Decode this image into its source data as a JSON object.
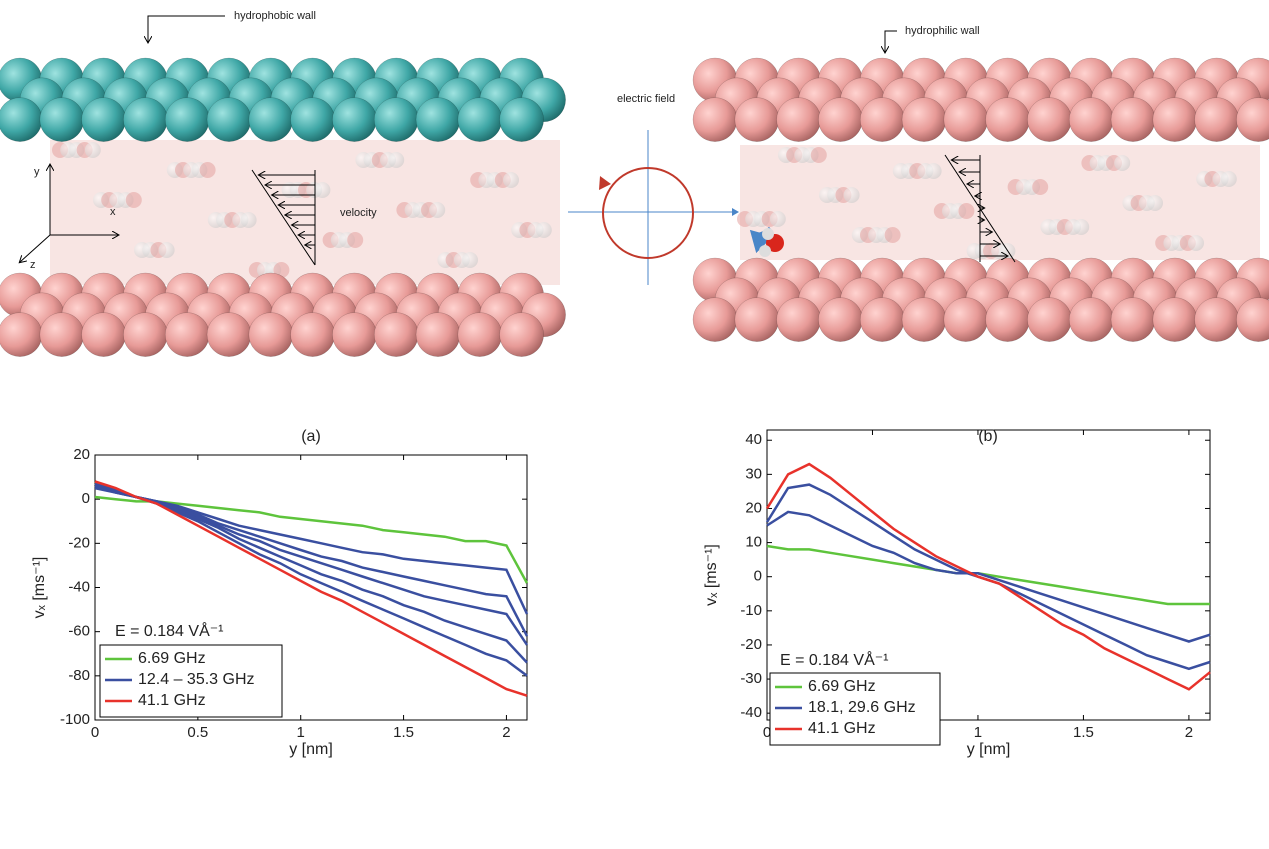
{
  "illustration": {
    "left_panel": {
      "wall_label": "hydrophobic wall",
      "flow_label": "velocity",
      "axes": [
        "y",
        "x",
        "z"
      ]
    },
    "center": {
      "field_label": "electric field"
    },
    "right_panel": {
      "wall_label": "hydrophilic wall"
    }
  },
  "chart_data": [
    {
      "type": "line",
      "title": "(a)",
      "x_label": "y [nm]",
      "y_label": "vₓ [ms⁻¹]",
      "annotation": "E = 0.184 VÅ⁻¹",
      "x": [
        0,
        0.1,
        0.2,
        0.3,
        0.4,
        0.5,
        0.6,
        0.7,
        0.8,
        0.9,
        1.0,
        1.1,
        1.2,
        1.3,
        1.4,
        1.5,
        1.6,
        1.7,
        1.8,
        1.9,
        2.0,
        2.1
      ],
      "xlim": [
        0,
        2.1
      ],
      "xticks": [
        0,
        0.5,
        1,
        1.5,
        2
      ],
      "ylim": [
        -100,
        20
      ],
      "yticks": [
        -100,
        -80,
        -60,
        -40,
        -20,
        0,
        20
      ],
      "series": [
        {
          "name": "6.69 GHz",
          "color": "#5ec43c",
          "values": [
            [
              1,
              0,
              -1,
              -1,
              -2,
              -3,
              -4,
              -5,
              -6,
              -8,
              -9,
              -10,
              -11,
              -12,
              -14,
              -15,
              -16,
              -17,
              -19,
              -19,
              -21,
              -38
            ]
          ]
        },
        {
          "name": "12.4 – 35.3 GHz",
          "color": "#3a4fa0",
          "values": [
            [
              5,
              3,
              1,
              -1,
              -3,
              -6,
              -9,
              -12,
              -14,
              -16,
              -18,
              -20,
              -22,
              -24,
              -25,
              -27,
              -28,
              -29,
              -30,
              -31,
              -32,
              -52
            ],
            [
              6,
              3,
              1,
              -1,
              -4,
              -7,
              -11,
              -14,
              -17,
              -20,
              -23,
              -26,
              -28,
              -31,
              -33,
              -35,
              -37,
              -39,
              -41,
              -43,
              -44,
              -62
            ],
            [
              6,
              4,
              1,
              -1,
              -4,
              -8,
              -12,
              -16,
              -19,
              -23,
              -26,
              -29,
              -32,
              -35,
              -38,
              -41,
              -44,
              -46,
              -48,
              -50,
              -52,
              -66
            ],
            [
              7,
              4,
              1,
              -1,
              -5,
              -9,
              -13,
              -18,
              -22,
              -26,
              -30,
              -34,
              -37,
              -41,
              -44,
              -48,
              -51,
              -55,
              -58,
              -61,
              -64,
              -74
            ],
            [
              7,
              4,
              1,
              -2,
              -6,
              -10,
              -15,
              -20,
              -25,
              -29,
              -34,
              -38,
              -42,
              -46,
              -50,
              -54,
              -58,
              -62,
              -66,
              -70,
              -73,
              -80
            ]
          ]
        },
        {
          "name": "41.1 GHz",
          "color": "#e8322b",
          "values": [
            [
              8,
              5,
              1,
              -2,
              -7,
              -12,
              -17,
              -22,
              -27,
              -32,
              -37,
              -42,
              -46,
              -51,
              -56,
              -61,
              -66,
              -71,
              -76,
              -81,
              -86,
              -89
            ]
          ]
        }
      ]
    },
    {
      "type": "line",
      "title": "(b)",
      "x_label": "y [nm]",
      "y_label": "vₓ [ms⁻¹]",
      "annotation": "E = 0.184 VÅ⁻¹",
      "x": [
        0,
        0.1,
        0.2,
        0.3,
        0.4,
        0.5,
        0.6,
        0.7,
        0.8,
        0.9,
        1.0,
        1.1,
        1.2,
        1.3,
        1.4,
        1.5,
        1.6,
        1.7,
        1.8,
        1.9,
        2.0,
        2.1
      ],
      "xlim": [
        0,
        2.1
      ],
      "xticks": [
        0,
        0.5,
        1,
        1.5,
        2
      ],
      "ylim": [
        -42,
        43
      ],
      "yticks": [
        -40,
        -30,
        -20,
        -10,
        0,
        10,
        20,
        30,
        40
      ],
      "series": [
        {
          "name": "6.69 GHz",
          "color": "#5ec43c",
          "values": [
            [
              9,
              8,
              8,
              7,
              6,
              5,
              4,
              3,
              2,
              1,
              1,
              0,
              -1,
              -2,
              -3,
              -4,
              -5,
              -6,
              -7,
              -8,
              -8,
              -8
            ]
          ]
        },
        {
          "name": "18.1, 29.6 GHz",
          "color": "#3a4fa0",
          "values": [
            [
              15,
              19,
              18,
              15,
              12,
              9,
              7,
              4,
              2,
              1,
              1,
              -1,
              -3,
              -5,
              -7,
              -9,
              -11,
              -13,
              -15,
              -17,
              -19,
              -17
            ],
            [
              16,
              26,
              27,
              24,
              20,
              16,
              12,
              8,
              5,
              2,
              0,
              -2,
              -5,
              -8,
              -11,
              -14,
              -17,
              -20,
              -23,
              -25,
              -27,
              -25
            ]
          ]
        },
        {
          "name": "41.1 GHz",
          "color": "#e8322b",
          "values": [
            [
              20,
              30,
              33,
              29,
              24,
              19,
              14,
              10,
              6,
              3,
              0,
              -2,
              -6,
              -10,
              -14,
              -17,
              -21,
              -24,
              -27,
              -30,
              -33,
              -28
            ]
          ]
        }
      ]
    }
  ]
}
